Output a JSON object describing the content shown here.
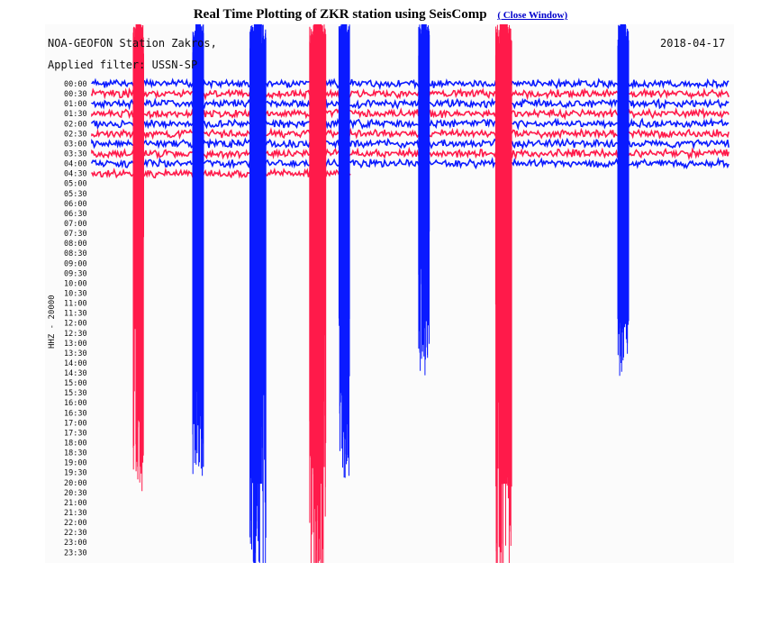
{
  "page": {
    "title": "Real Time Plotting of ZKR station using SeisComp",
    "close_link": "( Close Window)"
  },
  "header": {
    "station": "NOA-GEOFON Station Zakros,",
    "filter": "Applied filter: USSN-SP",
    "date": "2018-04-17"
  },
  "chart_data": {
    "type": "line",
    "title": "",
    "ylabel": "HHZ - 20000",
    "rows": [
      "00:00",
      "00:30",
      "01:00",
      "01:30",
      "02:00",
      "02:30",
      "03:00",
      "03:30",
      "04:00",
      "04:30",
      "05:00",
      "05:30",
      "06:00",
      "06:30",
      "07:00",
      "07:30",
      "08:00",
      "08:30",
      "09:00",
      "09:30",
      "10:00",
      "10:30",
      "11:00",
      "11:30",
      "12:00",
      "12:30",
      "13:00",
      "13:30",
      "14:00",
      "14:30",
      "15:00",
      "15:30",
      "16:00",
      "16:30",
      "17:00",
      "17:30",
      "18:00",
      "18:30",
      "19:00",
      "19:30",
      "20:00",
      "20:30",
      "21:00",
      "21:30",
      "22:00",
      "22:30",
      "23:00",
      "23:30"
    ],
    "traces_recorded": 10,
    "series_colors": [
      "#0a1aff",
      "#ff1a4a"
    ],
    "events": [
      {
        "minute": 3.5,
        "color": "#ff1a4a",
        "amplitude": "large"
      },
      {
        "minute": 8.0,
        "color": "#0a1aff",
        "amplitude": "large"
      },
      {
        "minute": 12.5,
        "color": "#0a1aff",
        "amplitude": "very-large"
      },
      {
        "minute": 17.0,
        "color": "#ff1a4a",
        "amplitude": "very-large"
      },
      {
        "minute": 19.0,
        "color": "#0a1aff",
        "amplitude": "large"
      },
      {
        "minute": 25.0,
        "color": "#0a1aff",
        "amplitude": "medium"
      },
      {
        "minute": 31.0,
        "color": "#ff1a4a",
        "amplitude": "very-large"
      },
      {
        "minute": 40.0,
        "color": "#0a1aff",
        "amplitude": "medium"
      }
    ]
  }
}
